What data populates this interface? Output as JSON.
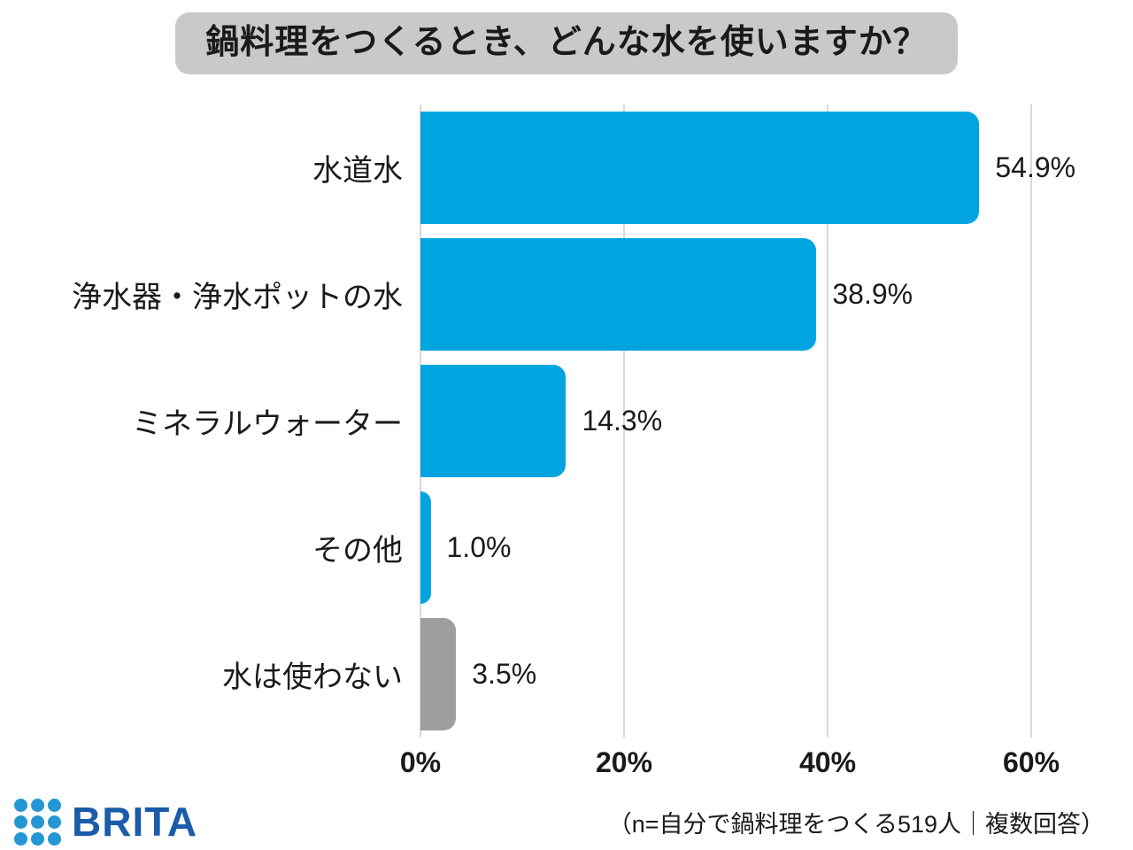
{
  "title": "鍋料理をつくるとき、どんな水を使いますか？",
  "chart_data": {
    "type": "bar",
    "orientation": "horizontal",
    "title": "鍋料理をつくるとき、どんな水を使いますか？",
    "categories": [
      "水道水",
      "浄水器・浄水ポットの水",
      "ミネラルウォーター",
      "その他",
      "水は使わない"
    ],
    "values": [
      54.9,
      38.9,
      14.3,
      1.0,
      3.5
    ],
    "value_labels": [
      "54.9%",
      "38.9%",
      "14.3%",
      "1.0%",
      "3.5%"
    ],
    "bar_colors": [
      "#00A5E0",
      "#00A5E0",
      "#00A5E0",
      "#00A5E0",
      "#9E9E9E"
    ],
    "xlim": [
      0,
      60
    ],
    "x_ticks": [
      {
        "value": 0,
        "label": "0%"
      },
      {
        "value": 20,
        "label": "20%"
      },
      {
        "value": 40,
        "label": "40%"
      },
      {
        "value": 60,
        "label": "60%"
      }
    ],
    "grid": true,
    "legend_position": "none"
  },
  "footer": {
    "brand": "BRITA",
    "note": "（n=自分で鍋料理をつくる519人｜複数回答）"
  },
  "colors": {
    "bar_primary": "#00A5E0",
    "bar_muted": "#9E9E9E",
    "title_bg": "#C9C9C9",
    "gridline": "#D9D9D9",
    "brand_text": "#1A5CA8",
    "brand_dot": "#2496D3",
    "text": "#1A1A1A"
  }
}
